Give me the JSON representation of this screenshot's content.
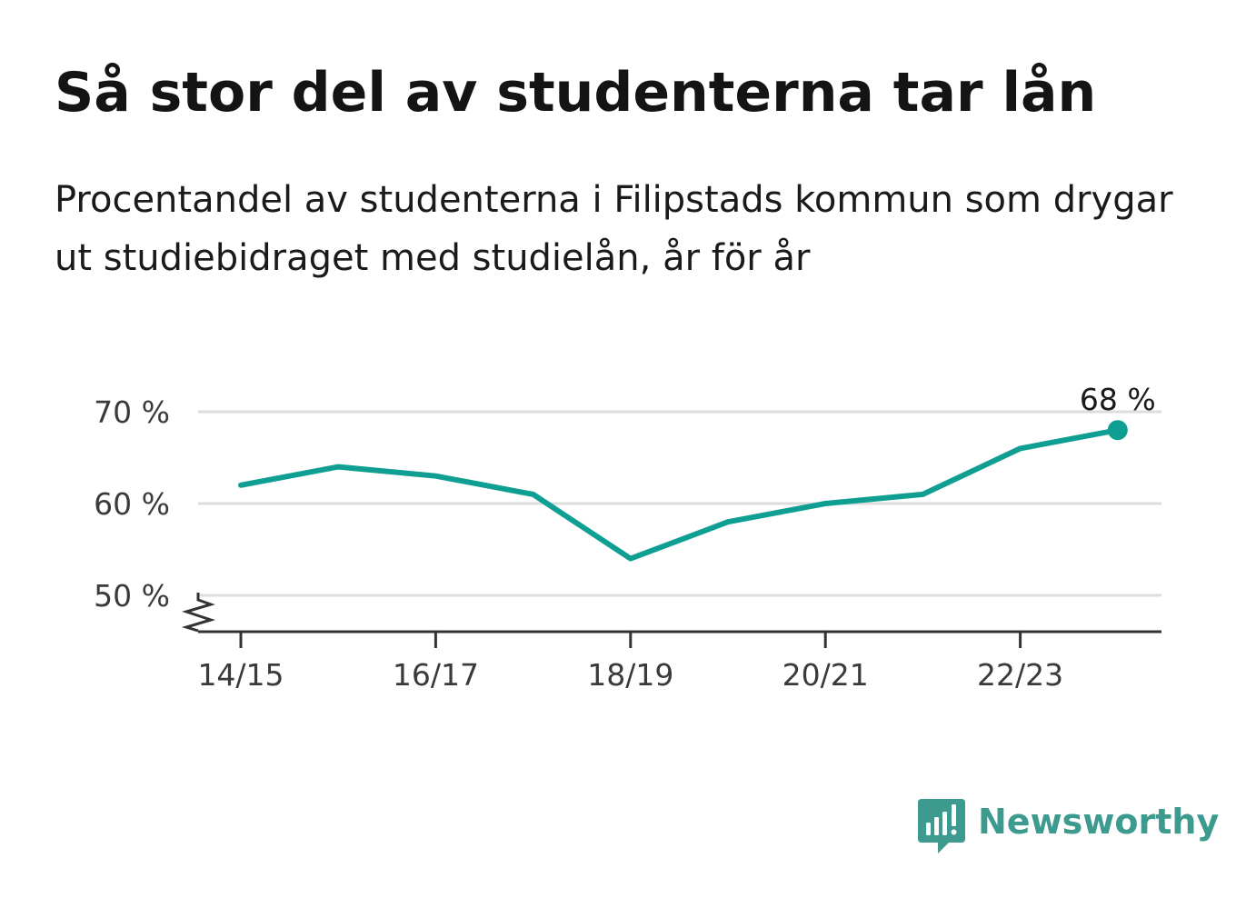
{
  "header": {
    "title": "Så stor del av studenterna tar lån",
    "subtitle": "Procentandel av studenterna i Filipstads kommun som drygar ut studiebidraget med studielån, år för år"
  },
  "chart_data": {
    "type": "line",
    "title": "Så stor del av studenterna tar lån",
    "subtitle": "Procentandel av studenterna i Filipstads kommun som drygar ut studiebidraget med studielån, år för år",
    "xlabel": "",
    "ylabel": "",
    "x": [
      "14/15",
      "15/16",
      "16/17",
      "17/18",
      "18/19",
      "19/20",
      "20/21",
      "21/22",
      "22/23",
      "23/24"
    ],
    "x_tick_labels": [
      "14/15",
      "16/17",
      "18/19",
      "20/21",
      "22/23"
    ],
    "series": [
      {
        "values": [
          62,
          64,
          63,
          61,
          54,
          58,
          60,
          61,
          66,
          68
        ],
        "color": "#0f9e92"
      }
    ],
    "ylim": [
      46,
      70
    ],
    "y_ticks": [
      50,
      60,
      70
    ],
    "y_tick_labels": [
      "50 %",
      "60 %",
      "70 %"
    ],
    "axis_break": true,
    "grid": true,
    "end_label": "68 %",
    "colors": {
      "line": "#0f9e92",
      "grid": "#dddddd",
      "axis": "#333333"
    }
  },
  "brand": {
    "name": "Newsworthy",
    "logo_icon": "newsworthy-logo-icon",
    "color": "#3d9a8f"
  }
}
